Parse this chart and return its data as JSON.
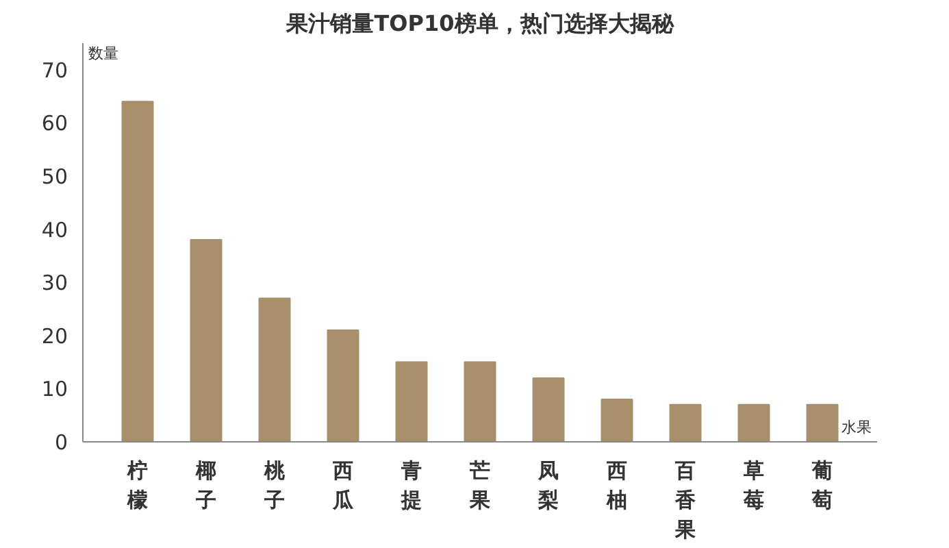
{
  "chart_data": {
    "type": "bar",
    "title": "果汁销量TOP10榜单，热门选择大揭秘",
    "ylabel": "数量",
    "xlabel": "水果",
    "categories": [
      "柠檬",
      "椰子",
      "桃子",
      "西瓜",
      "青提",
      "芒果",
      "凤梨",
      "西柚",
      "百香果",
      "草莓",
      "葡萄"
    ],
    "values": [
      64,
      38,
      27,
      21,
      15,
      15,
      12,
      8,
      7,
      7,
      7
    ],
    "color": "#a88f6c",
    "ylim": [
      0,
      75
    ],
    "yticks": [
      0,
      10,
      20,
      30,
      40,
      50,
      60,
      70
    ],
    "grid": false
  }
}
